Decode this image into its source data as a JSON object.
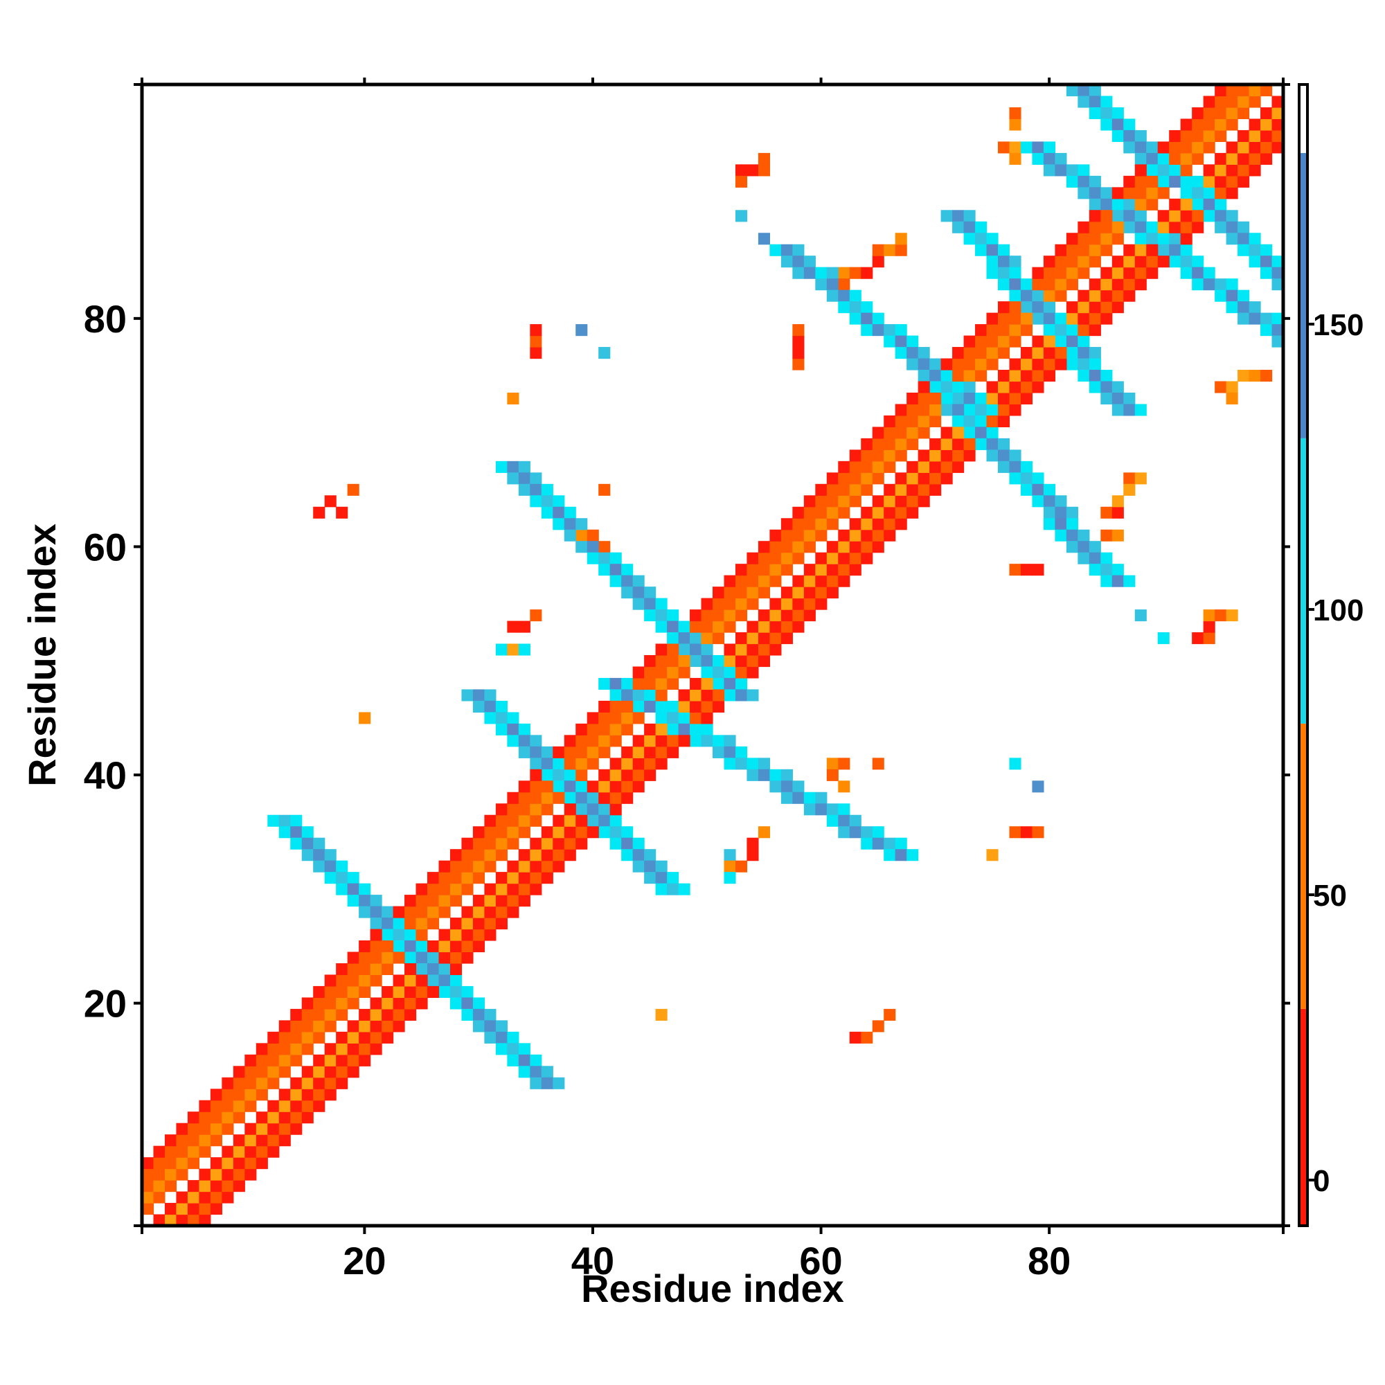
{
  "chart_data": {
    "type": "heatmap",
    "title": "",
    "xlabel": "Residue index",
    "ylabel": "Residue index",
    "xlim": [
      0.5,
      100.5
    ],
    "ylim": [
      0.5,
      100.5
    ],
    "x_ticks": [
      20,
      40,
      60,
      80
    ],
    "y_ticks": [
      20,
      40,
      60,
      80
    ],
    "colorbar": {
      "range": [
        -8,
        192
      ],
      "ticks": [
        0,
        50,
        100,
        150
      ],
      "bands": [
        {
          "from": -8,
          "to": 30,
          "color": "#ff1a0a"
        },
        {
          "from": 30,
          "to": 80,
          "color": "#ff7a00"
        },
        {
          "from": 80,
          "to": 130,
          "color": "#1ed8e6"
        },
        {
          "from": 130,
          "to": 180,
          "color": "#4a86c8"
        },
        {
          "from": 180,
          "to": 192,
          "color": "#ffffff"
        }
      ]
    },
    "palette": {
      "red": "#ff1a0a",
      "orange_red": "#ff5a00",
      "orange": "#ff8c00",
      "amber": "#ffa010",
      "cyan": "#00e8f5",
      "sky": "#33c2e0",
      "steel": "#4e90cc",
      "steel_dark": "#5a86c5"
    },
    "diagonal_band": {
      "x_from": 1,
      "x_to": 100,
      "cells": [
        1,
        2,
        3,
        4,
        5
      ],
      "level": 40
    },
    "strands": [
      {
        "x": [
          13,
          36
        ],
        "y": [
          36,
          13
        ],
        "level": 140
      },
      {
        "x": [
          30,
          47
        ],
        "y": [
          47,
          30
        ],
        "level": 140
      },
      {
        "x": [
          33,
          53
        ],
        "y": [
          67,
          47
        ],
        "level": 140
      },
      {
        "x": [
          42,
          67
        ],
        "y": [
          48,
          33
        ],
        "level": 140
      },
      {
        "x": [
          57,
          74
        ],
        "y": [
          86,
          72
        ],
        "level": 140
      },
      {
        "x": [
          67,
          86
        ],
        "y": [
          78,
          57
        ],
        "level": 140
      },
      {
        "x": [
          72,
          87
        ],
        "y": [
          89,
          72
        ],
        "level": 140
      },
      {
        "x": [
          79,
          101
        ],
        "y": [
          95,
          78
        ],
        "level": 140
      },
      {
        "x": [
          83,
          101
        ],
        "y": [
          100,
          83
        ],
        "level": 140
      }
    ],
    "contacts": [
      {
        "x": 16,
        "y": 63,
        "v": 10
      },
      {
        "x": 17,
        "y": 64,
        "v": 10
      },
      {
        "x": 18,
        "y": 63,
        "v": 10
      },
      {
        "x": 19,
        "y": 65,
        "v": 10
      },
      {
        "x": 20,
        "y": 45,
        "v": 60
      },
      {
        "x": 46,
        "y": 19,
        "v": 60
      },
      {
        "x": 33,
        "y": 73,
        "v": 40
      },
      {
        "x": 35,
        "y": 77,
        "v": 10
      },
      {
        "x": 35,
        "y": 78,
        "v": 10
      },
      {
        "x": 35,
        "y": 79,
        "v": 10
      },
      {
        "x": 39,
        "y": 79,
        "v": 145
      },
      {
        "x": 41,
        "y": 77,
        "v": 125
      },
      {
        "x": 41,
        "y": 65,
        "v": 40
      },
      {
        "x": 39,
        "y": 61,
        "v": 60
      },
      {
        "x": 40,
        "y": 61,
        "v": 40
      },
      {
        "x": 41,
        "y": 60,
        "v": 40
      },
      {
        "x": 32,
        "y": 51,
        "v": 110
      },
      {
        "x": 33,
        "y": 51,
        "v": 60
      },
      {
        "x": 34,
        "y": 51,
        "v": 110
      },
      {
        "x": 33,
        "y": 53,
        "v": 10
      },
      {
        "x": 34,
        "y": 53,
        "v": 10
      },
      {
        "x": 35,
        "y": 54,
        "v": 40
      },
      {
        "x": 52,
        "y": 33,
        "v": 110
      },
      {
        "x": 52,
        "y": 32,
        "v": 60
      },
      {
        "x": 53,
        "y": 32,
        "v": 60
      },
      {
        "x": 52,
        "y": 31,
        "v": 110
      },
      {
        "x": 54,
        "y": 33,
        "v": 10
      },
      {
        "x": 54,
        "y": 34,
        "v": 10
      },
      {
        "x": 55,
        "y": 35,
        "v": 40
      },
      {
        "x": 53,
        "y": 93,
        "v": 10
      },
      {
        "x": 54,
        "y": 93,
        "v": 10
      },
      {
        "x": 55,
        "y": 93,
        "v": 10
      },
      {
        "x": 53,
        "y": 92,
        "v": 40
      },
      {
        "x": 55,
        "y": 94,
        "v": 40
      },
      {
        "x": 53,
        "y": 89,
        "v": 125
      },
      {
        "x": 55,
        "y": 87,
        "v": 145
      },
      {
        "x": 58,
        "y": 76,
        "v": 10
      },
      {
        "x": 58,
        "y": 77,
        "v": 10
      },
      {
        "x": 58,
        "y": 78,
        "v": 10
      },
      {
        "x": 58,
        "y": 79,
        "v": 60
      },
      {
        "x": 61,
        "y": 41,
        "v": 60
      },
      {
        "x": 62,
        "y": 41,
        "v": 40
      },
      {
        "x": 61,
        "y": 40,
        "v": 40
      },
      {
        "x": 62,
        "y": 39,
        "v": 40
      },
      {
        "x": 63,
        "y": 17,
        "v": 10
      },
      {
        "x": 64,
        "y": 17,
        "v": 10
      },
      {
        "x": 65,
        "y": 18,
        "v": 10
      },
      {
        "x": 66,
        "y": 19,
        "v": 10
      },
      {
        "x": 65,
        "y": 41,
        "v": 40
      },
      {
        "x": 62,
        "y": 84,
        "v": 60
      },
      {
        "x": 62,
        "y": 83,
        "v": 40
      },
      {
        "x": 63,
        "y": 84,
        "v": 10
      },
      {
        "x": 64,
        "y": 84,
        "v": 10
      },
      {
        "x": 65,
        "y": 85,
        "v": 10
      },
      {
        "x": 65,
        "y": 86,
        "v": 40
      },
      {
        "x": 66,
        "y": 86,
        "v": 40
      },
      {
        "x": 67,
        "y": 86,
        "v": 40
      },
      {
        "x": 67,
        "y": 87,
        "v": 40
      },
      {
        "x": 75,
        "y": 33,
        "v": 40
      },
      {
        "x": 77,
        "y": 35,
        "v": 10
      },
      {
        "x": 78,
        "y": 35,
        "v": 10
      },
      {
        "x": 79,
        "y": 35,
        "v": 10
      },
      {
        "x": 77,
        "y": 41,
        "v": 125
      },
      {
        "x": 79,
        "y": 39,
        "v": 145
      },
      {
        "x": 77,
        "y": 58,
        "v": 10
      },
      {
        "x": 78,
        "y": 58,
        "v": 10
      },
      {
        "x": 79,
        "y": 58,
        "v": 10
      },
      {
        "x": 76,
        "y": 95,
        "v": 60
      },
      {
        "x": 77,
        "y": 95,
        "v": 60
      },
      {
        "x": 77,
        "y": 94,
        "v": 40
      },
      {
        "x": 77,
        "y": 97,
        "v": 60
      },
      {
        "x": 77,
        "y": 98,
        "v": 60
      },
      {
        "x": 85,
        "y": 63,
        "v": 10
      },
      {
        "x": 86,
        "y": 63,
        "v": 10
      },
      {
        "x": 86,
        "y": 64,
        "v": 40
      },
      {
        "x": 87,
        "y": 66,
        "v": 40
      },
      {
        "x": 88,
        "y": 66,
        "v": 40
      },
      {
        "x": 87,
        "y": 65,
        "v": 40
      },
      {
        "x": 85,
        "y": 61,
        "v": 60
      },
      {
        "x": 86,
        "y": 61,
        "v": 60
      },
      {
        "x": 88,
        "y": 54,
        "v": 125
      },
      {
        "x": 90,
        "y": 52,
        "v": 125
      },
      {
        "x": 93,
        "y": 52,
        "v": 10
      },
      {
        "x": 94,
        "y": 52,
        "v": 10
      },
      {
        "x": 94,
        "y": 53,
        "v": 10
      },
      {
        "x": 94,
        "y": 54,
        "v": 60
      },
      {
        "x": 95,
        "y": 54,
        "v": 60
      },
      {
        "x": 96,
        "y": 54,
        "v": 60
      },
      {
        "x": 95,
        "y": 74,
        "v": 60
      },
      {
        "x": 96,
        "y": 74,
        "v": 60
      },
      {
        "x": 96,
        "y": 73,
        "v": 60
      },
      {
        "x": 97,
        "y": 75,
        "v": 60
      },
      {
        "x": 98,
        "y": 75,
        "v": 40
      },
      {
        "x": 99,
        "y": 75,
        "v": 40
      }
    ]
  }
}
